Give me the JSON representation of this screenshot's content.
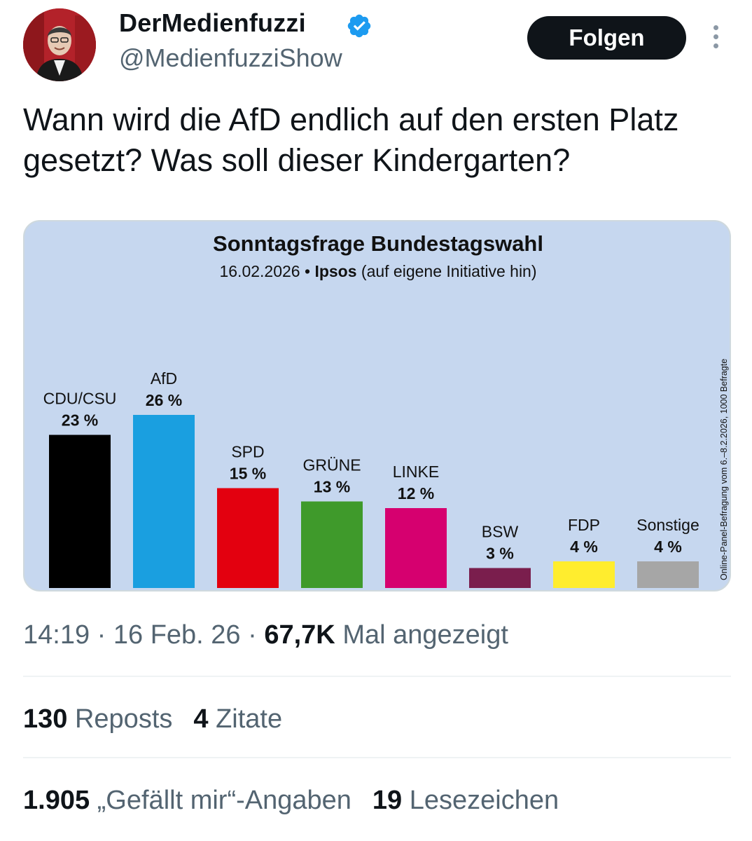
{
  "author": {
    "display_name": "DerMedienfuzzi",
    "handle": "@MedienfuzziShow"
  },
  "follow_label": "Folgen",
  "tweet_text": "Wann wird die AfD endlich auf den ersten Platz gesetzt? Was soll dieser Kindergarten?",
  "meta": {
    "time": "14:19",
    "date": "16 Feb. 26",
    "views": "67,7K",
    "views_label": "Mal angezeigt"
  },
  "stats": {
    "reposts": "130",
    "reposts_label": "Reposts",
    "quotes": "4",
    "quotes_label": "Zitate",
    "likes": "1.905",
    "likes_label": "„Gefällt mir“-Angaben",
    "bookmarks": "19",
    "bookmarks_label": "Lesezeichen"
  },
  "colors": {
    "accent": "#1d9bf0",
    "chart_background": "#c6d7ef",
    "avatar_red": "#b3222a"
  },
  "chart_data": {
    "type": "bar",
    "title": "Sonntagsfrage Bundestagswahl",
    "subtitle_date": "16.02.2026",
    "subtitle_separator": "•",
    "subtitle_institute": "Ipsos",
    "subtitle_note": "(auf eigene Initiative hin)",
    "side_note": "Online-Panel-Befragung vom 6.–8.2.2026, 1000 Befragte",
    "unit": "%",
    "categories": [
      "CDU/CSU",
      "AfD",
      "SPD",
      "GRÜNE",
      "LINKE",
      "BSW",
      "FDP",
      "Sonstige"
    ],
    "values": [
      23,
      26,
      15,
      13,
      12,
      3,
      4,
      4
    ],
    "value_labels": [
      "23 %",
      "26 %",
      "15 %",
      "13 %",
      "12 %",
      "3 %",
      "4 %",
      "4 %"
    ],
    "colors": [
      "#000000",
      "#1a9fe0",
      "#e3000f",
      "#3f9a2b",
      "#d6006f",
      "#7a1e4d",
      "#ffed2e",
      "#a6a6a6"
    ],
    "ylim": [
      0,
      26
    ]
  }
}
